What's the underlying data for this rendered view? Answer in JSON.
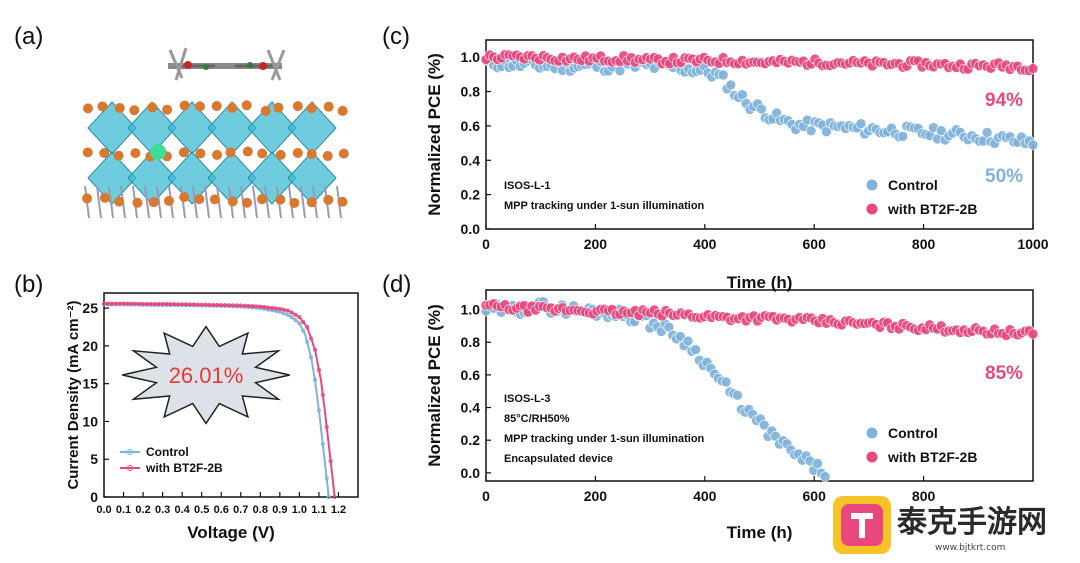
{
  "panels": {
    "a": "(a)",
    "b": "(b)",
    "c": "(c)",
    "d": "(d)"
  },
  "colors": {
    "control": "#7fb2dc",
    "bt2f": "#e8487e",
    "star_fill": "#dde2e8",
    "efficiency_text": "#e53935"
  },
  "watermark": {
    "text": "泰克手游网",
    "url": "www.bjtkrt.com"
  },
  "chart_data": [
    {
      "id": "b",
      "type": "line",
      "xlabel": "Voltage (V)",
      "ylabel": "Current Density (mA cm⁻²)",
      "xlim": [
        0.0,
        1.3
      ],
      "ylim": [
        0,
        27
      ],
      "xticks": [
        "0.0",
        "0.1",
        "0.2",
        "0.3",
        "0.4",
        "0.5",
        "0.6",
        "0.7",
        "0.8",
        "0.9",
        "1.0",
        "1.1",
        "1.2"
      ],
      "yticks": [
        "0",
        "5",
        "10",
        "15",
        "20",
        "25"
      ],
      "annotation": "26.01%",
      "legend_position": "bottom-left",
      "series": [
        {
          "name": "Control",
          "color": "#7fb2dc",
          "x": [
            0.0,
            0.1,
            0.2,
            0.3,
            0.4,
            0.5,
            0.6,
            0.7,
            0.8,
            0.9,
            0.95,
            1.0,
            1.03,
            1.06,
            1.08,
            1.1,
            1.12,
            1.14,
            1.15
          ],
          "y": [
            25.5,
            25.5,
            25.45,
            25.4,
            25.4,
            25.35,
            25.3,
            25.2,
            25.0,
            24.5,
            24.0,
            23.0,
            21.5,
            18.5,
            15.5,
            11.5,
            7.0,
            2.5,
            0
          ]
        },
        {
          "name": "with BT2F-2B",
          "color": "#e8487e",
          "x": [
            0.0,
            0.1,
            0.2,
            0.3,
            0.4,
            0.5,
            0.6,
            0.7,
            0.8,
            0.9,
            0.95,
            1.0,
            1.04,
            1.08,
            1.11,
            1.13,
            1.15,
            1.17,
            1.18
          ],
          "y": [
            25.6,
            25.6,
            25.55,
            25.55,
            25.5,
            25.45,
            25.4,
            25.35,
            25.2,
            24.9,
            24.6,
            23.8,
            22.5,
            19.5,
            15.5,
            11.5,
            7.0,
            2.5,
            0
          ]
        }
      ]
    },
    {
      "id": "c",
      "type": "scatter",
      "xlabel": "Time (h)",
      "ylabel": "Normalized PCE (%)",
      "xlim": [
        0,
        1000
      ],
      "ylim": [
        0,
        1.1
      ],
      "xticks": [
        "0",
        "200",
        "400",
        "600",
        "800",
        "1000"
      ],
      "yticks": [
        "0.0",
        "0.2",
        "0.4",
        "0.6",
        "0.8",
        "1.0"
      ],
      "notes": [
        "ISOS-L-1",
        "MPP tracking under 1-sun illumination"
      ],
      "end_labels": {
        "with BT2F-2B": "94%",
        "Control": "50%"
      },
      "legend_position": "bottom-right",
      "series": [
        {
          "name": "Control",
          "color": "#7fb2dc",
          "x": [
            0,
            50,
            100,
            150,
            200,
            250,
            300,
            350,
            400,
            420,
            440,
            460,
            480,
            500,
            520,
            540,
            560,
            580,
            600,
            650,
            700,
            750,
            800,
            850,
            900,
            950,
            1000
          ],
          "y": [
            0.97,
            0.96,
            0.95,
            0.95,
            0.95,
            0.95,
            0.95,
            0.94,
            0.92,
            0.9,
            0.85,
            0.78,
            0.73,
            0.7,
            0.66,
            0.63,
            0.61,
            0.6,
            0.6,
            0.59,
            0.58,
            0.57,
            0.56,
            0.55,
            0.54,
            0.52,
            0.5
          ]
        },
        {
          "name": "with BT2F-2B",
          "color": "#e8487e",
          "x": [
            0,
            50,
            100,
            150,
            200,
            250,
            300,
            350,
            400,
            450,
            500,
            550,
            600,
            650,
            700,
            750,
            800,
            850,
            900,
            950,
            1000
          ],
          "y": [
            1.0,
            1.0,
            1.0,
            0.99,
            0.99,
            0.99,
            0.98,
            0.98,
            0.98,
            0.98,
            0.97,
            0.97,
            0.97,
            0.97,
            0.96,
            0.96,
            0.96,
            0.95,
            0.95,
            0.95,
            0.94
          ]
        }
      ]
    },
    {
      "id": "d",
      "type": "scatter",
      "xlabel": "Time (h)",
      "ylabel": "Normalized PCE (%)",
      "xlim": [
        0,
        1000
      ],
      "ylim": [
        -0.05,
        1.12
      ],
      "xticks": [
        "0",
        "200",
        "400",
        "600",
        "800"
      ],
      "yticks": [
        "0.0",
        "0.2",
        "0.4",
        "0.6",
        "0.8",
        "1.0"
      ],
      "notes": [
        "ISOS-L-3",
        "85°C/RH50%",
        "MPP tracking under 1-sun illumination",
        "Encapsulated device"
      ],
      "end_labels": {
        "with BT2F-2B": "85%"
      },
      "legend_position": "bottom-right",
      "series": [
        {
          "name": "Control",
          "color": "#7fb2dc",
          "x": [
            0,
            50,
            100,
            150,
            200,
            250,
            280,
            300,
            330,
            360,
            390,
            420,
            450,
            480,
            510,
            540,
            570,
            600,
            620
          ],
          "y": [
            1.0,
            1.0,
            1.02,
            1.0,
            0.99,
            0.97,
            0.95,
            0.92,
            0.88,
            0.82,
            0.72,
            0.6,
            0.48,
            0.37,
            0.27,
            0.18,
            0.1,
            0.04,
            0.0
          ]
        },
        {
          "name": "with BT2F-2B",
          "color": "#e8487e",
          "x": [
            0,
            50,
            100,
            150,
            200,
            250,
            300,
            350,
            400,
            450,
            500,
            550,
            600,
            650,
            700,
            750,
            800,
            850,
            900,
            950,
            1000
          ],
          "y": [
            1.02,
            1.01,
            1.0,
            1.0,
            0.99,
            0.98,
            0.98,
            0.97,
            0.96,
            0.95,
            0.95,
            0.94,
            0.93,
            0.92,
            0.91,
            0.9,
            0.89,
            0.88,
            0.87,
            0.86,
            0.85
          ]
        }
      ]
    }
  ]
}
